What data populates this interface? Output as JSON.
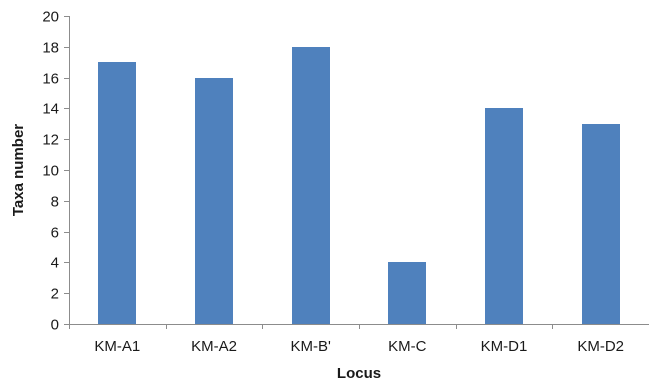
{
  "chart_data": {
    "type": "bar",
    "categories": [
      "KM-A1",
      "KM-A2",
      "KM-B'",
      "KM-C",
      "KM-D1",
      "KM-D2"
    ],
    "values": [
      17,
      16,
      18,
      4,
      14,
      13
    ],
    "title": "",
    "xlabel": "Locus",
    "ylabel": "Taxa number",
    "ylim": [
      0,
      20
    ],
    "yticks": [
      0,
      2,
      4,
      6,
      8,
      10,
      12,
      14,
      16,
      18,
      20
    ],
    "grid": false,
    "legend": "none",
    "bar_color": "#4f81bd",
    "axis_color": "#8c8c8c"
  }
}
